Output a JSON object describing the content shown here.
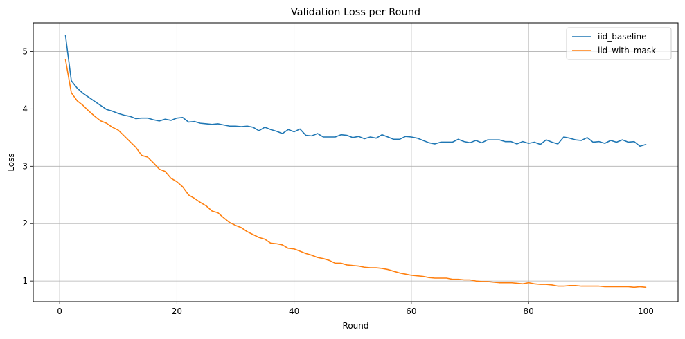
{
  "chart_data": {
    "type": "line",
    "title": "Validation Loss per Round",
    "xlabel": "Round",
    "ylabel": "Loss",
    "xlim": [
      -4.5,
      105.5
    ],
    "ylim": [
      0.64,
      5.5
    ],
    "xticks": [
      0,
      20,
      40,
      60,
      80,
      100
    ],
    "yticks": [
      1,
      2,
      3,
      4,
      5
    ],
    "grid": true,
    "legend_position": "top-right",
    "x": [
      1,
      2,
      3,
      4,
      5,
      6,
      7,
      8,
      9,
      10,
      11,
      12,
      13,
      14,
      15,
      16,
      17,
      18,
      19,
      20,
      21,
      22,
      23,
      24,
      25,
      26,
      27,
      28,
      29,
      30,
      31,
      32,
      33,
      34,
      35,
      36,
      37,
      38,
      39,
      40,
      41,
      42,
      43,
      44,
      45,
      46,
      47,
      48,
      49,
      50,
      51,
      52,
      53,
      54,
      55,
      56,
      57,
      58,
      59,
      60,
      61,
      62,
      63,
      64,
      65,
      66,
      67,
      68,
      69,
      70,
      71,
      72,
      73,
      74,
      75,
      76,
      77,
      78,
      79,
      80,
      81,
      82,
      83,
      84,
      85,
      86,
      87,
      88,
      89,
      90,
      91,
      92,
      93,
      94,
      95,
      96,
      97,
      98,
      99,
      100
    ],
    "series": [
      {
        "name": "iid_baseline",
        "color": "#1f77b4",
        "values": [
          5.28,
          4.49,
          4.36,
          4.27,
          4.2,
          4.13,
          4.06,
          3.99,
          3.96,
          3.92,
          3.89,
          3.87,
          3.83,
          3.84,
          3.84,
          3.81,
          3.79,
          3.82,
          3.8,
          3.84,
          3.85,
          3.77,
          3.78,
          3.75,
          3.74,
          3.73,
          3.74,
          3.72,
          3.7,
          3.7,
          3.69,
          3.7,
          3.68,
          3.62,
          3.68,
          3.64,
          3.61,
          3.57,
          3.64,
          3.6,
          3.65,
          3.54,
          3.53,
          3.57,
          3.51,
          3.51,
          3.51,
          3.55,
          3.54,
          3.5,
          3.52,
          3.48,
          3.51,
          3.49,
          3.55,
          3.51,
          3.47,
          3.47,
          3.52,
          3.51,
          3.49,
          3.45,
          3.41,
          3.39,
          3.42,
          3.42,
          3.42,
          3.47,
          3.43,
          3.41,
          3.45,
          3.41,
          3.46,
          3.46,
          3.46,
          3.43,
          3.43,
          3.39,
          3.43,
          3.4,
          3.42,
          3.38,
          3.46,
          3.42,
          3.39,
          3.51,
          3.49,
          3.46,
          3.45,
          3.5,
          3.42,
          3.43,
          3.4,
          3.45,
          3.42,
          3.46,
          3.42,
          3.43,
          3.35,
          3.38
        ]
      },
      {
        "name": "iid_with_mask",
        "color": "#ff7f0e",
        "values": [
          4.86,
          4.28,
          4.14,
          4.06,
          3.96,
          3.87,
          3.79,
          3.75,
          3.68,
          3.63,
          3.53,
          3.43,
          3.33,
          3.19,
          3.16,
          3.06,
          2.95,
          2.91,
          2.79,
          2.73,
          2.64,
          2.5,
          2.44,
          2.37,
          2.31,
          2.22,
          2.19,
          2.1,
          2.02,
          1.97,
          1.93,
          1.86,
          1.81,
          1.76,
          1.73,
          1.66,
          1.65,
          1.63,
          1.57,
          1.56,
          1.52,
          1.48,
          1.45,
          1.41,
          1.39,
          1.36,
          1.31,
          1.31,
          1.28,
          1.27,
          1.26,
          1.24,
          1.23,
          1.23,
          1.22,
          1.2,
          1.17,
          1.14,
          1.12,
          1.1,
          1.09,
          1.08,
          1.06,
          1.05,
          1.05,
          1.05,
          1.03,
          1.03,
          1.02,
          1.02,
          1.0,
          0.99,
          0.99,
          0.98,
          0.97,
          0.97,
          0.97,
          0.96,
          0.95,
          0.97,
          0.95,
          0.94,
          0.94,
          0.93,
          0.91,
          0.91,
          0.92,
          0.92,
          0.91,
          0.91,
          0.91,
          0.91,
          0.9,
          0.9,
          0.9,
          0.9,
          0.9,
          0.89,
          0.9,
          0.89
        ]
      }
    ]
  }
}
